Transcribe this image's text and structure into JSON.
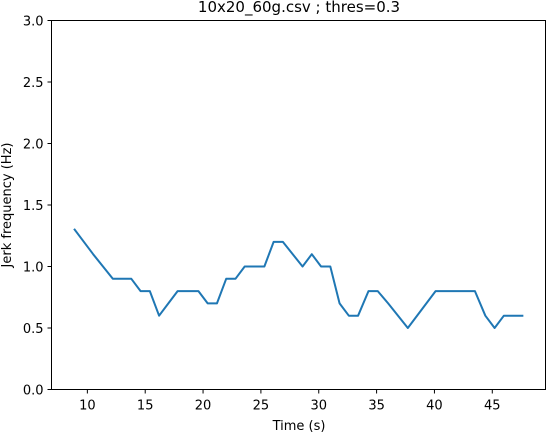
{
  "chart_data": {
    "type": "line",
    "title": "10x20_60g.csv ; thres=0.3",
    "xlabel": "Time (s)",
    "ylabel": "Jerk frequency (Hz)",
    "xlim": [
      6.9,
      49.6
    ],
    "ylim": [
      0.0,
      3.0
    ],
    "xticks": [
      10,
      15,
      20,
      25,
      30,
      35,
      40,
      45
    ],
    "xtick_labels": [
      "10",
      "15",
      "20",
      "25",
      "30",
      "35",
      "40",
      "45"
    ],
    "yticks": [
      0.0,
      0.5,
      1.0,
      1.5,
      2.0,
      2.5,
      3.0
    ],
    "ytick_labels": [
      "0.0",
      "0.5",
      "1.0",
      "1.5",
      "2.0",
      "2.5",
      "3.0"
    ],
    "grid": false,
    "colors": {
      "line": "#1f77b4",
      "axes": "#000000",
      "background": "#ffffff"
    },
    "series": [
      {
        "x": [
          8.9,
          10.5,
          12.2,
          13.8,
          14.6,
          15.4,
          16.2,
          17.0,
          17.8,
          19.6,
          20.4,
          21.2,
          22.0,
          22.8,
          23.6,
          25.3,
          26.1,
          26.9,
          28.6,
          29.4,
          30.2,
          31.0,
          31.8,
          32.6,
          33.4,
          34.3,
          35.1,
          36.0,
          37.7,
          40.1,
          41.9,
          43.5,
          44.4,
          45.2,
          46.0,
          47.6
        ],
        "y": [
          1.3,
          1.1,
          0.9,
          0.9,
          0.8,
          0.8,
          0.6,
          0.7,
          0.8,
          0.8,
          0.7,
          0.7,
          0.9,
          0.9,
          1.0,
          1.0,
          1.2,
          1.2,
          1.0,
          1.1,
          1.0,
          1.0,
          0.7,
          0.6,
          0.6,
          0.8,
          0.8,
          0.7,
          0.5,
          0.8,
          0.8,
          0.8,
          0.6,
          0.5,
          0.6,
          0.6
        ]
      }
    ]
  }
}
